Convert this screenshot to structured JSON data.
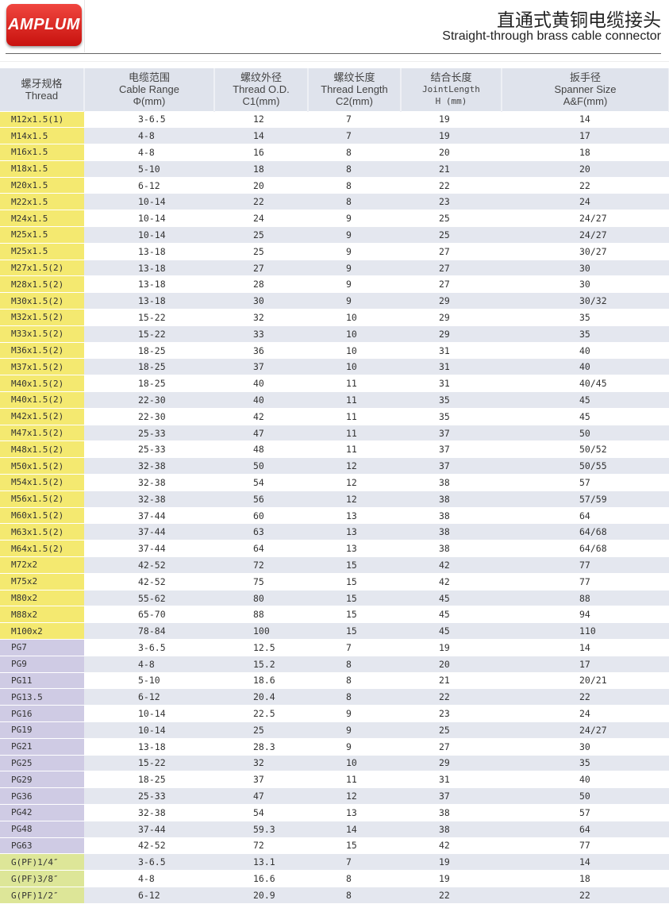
{
  "brand": {
    "logo_text": "AMPLUM"
  },
  "header": {
    "title_cn": "直通式黄铜电缆接头",
    "title_en": "Straight-through brass cable connector"
  },
  "colors": {
    "M": "#f4e970",
    "PG": "#cfcbe4",
    "G": "#dde698",
    "alt_row": "#e4e7ef"
  },
  "table": {
    "columns": [
      {
        "cn": "螺牙规格",
        "en": "Thread",
        "unit": ""
      },
      {
        "cn": "电缆范围",
        "en": "Cable Range",
        "unit": "Φ(mm)"
      },
      {
        "cn": "螺纹外径",
        "en": "Thread O.D.",
        "unit": "C1(mm)"
      },
      {
        "cn": "螺纹长度",
        "en": "Thread Length",
        "unit": "C2(mm)"
      },
      {
        "cn": "结合长度",
        "en": "JointLength",
        "unit": "H (mm)"
      },
      {
        "cn": "扳手径",
        "en": "Spanner Size",
        "unit": "A&F(mm)"
      }
    ],
    "rows": [
      [
        "M12x1.5(1)",
        "3-6.5",
        "12",
        "7",
        "19",
        "14"
      ],
      [
        "M14x1.5",
        "4-8",
        "14",
        "7",
        "19",
        "17"
      ],
      [
        "M16x1.5",
        "4-8",
        "16",
        "8",
        "20",
        "18"
      ],
      [
        "M18x1.5",
        "5-10",
        "18",
        "8",
        "21",
        "20"
      ],
      [
        "M20x1.5",
        "6-12",
        "20",
        "8",
        "22",
        "22"
      ],
      [
        "M22x1.5",
        "10-14",
        "22",
        "8",
        "23",
        "24"
      ],
      [
        "M24x1.5",
        "10-14",
        "24",
        "9",
        "25",
        "24/27"
      ],
      [
        "M25x1.5",
        "10-14",
        "25",
        "9",
        "25",
        "24/27"
      ],
      [
        "M25x1.5",
        "13-18",
        "25",
        "9",
        "27",
        "30/27"
      ],
      [
        "M27x1.5(2)",
        "13-18",
        "27",
        "9",
        "27",
        "30"
      ],
      [
        "M28x1.5(2)",
        "13-18",
        "28",
        "9",
        "27",
        "30"
      ],
      [
        "M30x1.5(2)",
        "13-18",
        "30",
        "9",
        "29",
        "30/32"
      ],
      [
        "M32x1.5(2)",
        "15-22",
        "32",
        "10",
        "29",
        "35"
      ],
      [
        "M33x1.5(2)",
        "15-22",
        "33",
        "10",
        "29",
        "35"
      ],
      [
        "M36x1.5(2)",
        "18-25",
        "36",
        "10",
        "31",
        "40"
      ],
      [
        "M37x1.5(2)",
        "18-25",
        "37",
        "10",
        "31",
        "40"
      ],
      [
        "M40x1.5(2)",
        "18-25",
        "40",
        "11",
        "31",
        "40/45"
      ],
      [
        "M40x1.5(2)",
        "22-30",
        "40",
        "11",
        "35",
        "45"
      ],
      [
        "M42x1.5(2)",
        "22-30",
        "42",
        "11",
        "35",
        "45"
      ],
      [
        "M47x1.5(2)",
        "25-33",
        "47",
        "11",
        "37",
        "50"
      ],
      [
        "M48x1.5(2)",
        "25-33",
        "48",
        "11",
        "37",
        "50/52"
      ],
      [
        "M50x1.5(2)",
        "32-38",
        "50",
        "12",
        "37",
        "50/55"
      ],
      [
        "M54x1.5(2)",
        "32-38",
        "54",
        "12",
        "38",
        "57"
      ],
      [
        "M56x1.5(2)",
        "32-38",
        "56",
        "12",
        "38",
        "57/59"
      ],
      [
        "M60x1.5(2)",
        "37-44",
        "60",
        "13",
        "38",
        "64"
      ],
      [
        "M63x1.5(2)",
        "37-44",
        "63",
        "13",
        "38",
        "64/68"
      ],
      [
        "M64x1.5(2)",
        "37-44",
        "64",
        "13",
        "38",
        "64/68"
      ],
      [
        "M72x2",
        "42-52",
        "72",
        "15",
        "42",
        "77"
      ],
      [
        "M75x2",
        "42-52",
        "75",
        "15",
        "42",
        "77"
      ],
      [
        "M80x2",
        "55-62",
        "80",
        "15",
        "45",
        "88"
      ],
      [
        "M88x2",
        "65-70",
        "88",
        "15",
        "45",
        "94"
      ],
      [
        "M100x2",
        "78-84",
        "100",
        "15",
        "45",
        "110"
      ],
      [
        "PG7",
        "3-6.5",
        "12.5",
        "7",
        "19",
        "14"
      ],
      [
        "PG9",
        "4-8",
        "15.2",
        "8",
        "20",
        "17"
      ],
      [
        "PG11",
        "5-10",
        "18.6",
        "8",
        "21",
        "20/21"
      ],
      [
        "PG13.5",
        "6-12",
        "20.4",
        "8",
        "22",
        "22"
      ],
      [
        "PG16",
        "10-14",
        "22.5",
        "9",
        "23",
        "24"
      ],
      [
        "PG19",
        "10-14",
        "25",
        "9",
        "25",
        "24/27"
      ],
      [
        "PG21",
        "13-18",
        "28.3",
        "9",
        "27",
        "30"
      ],
      [
        "PG25",
        "15-22",
        "32",
        "10",
        "29",
        "35"
      ],
      [
        "PG29",
        "18-25",
        "37",
        "11",
        "31",
        "40"
      ],
      [
        "PG36",
        "25-33",
        "47",
        "12",
        "37",
        "50"
      ],
      [
        "PG42",
        "32-38",
        "54",
        "13",
        "38",
        "57"
      ],
      [
        "PG48",
        "37-44",
        "59.3",
        "14",
        "38",
        "64"
      ],
      [
        "PG63",
        "42-52",
        "72",
        "15",
        "42",
        "77"
      ],
      [
        "G(PF)1/4″",
        "3-6.5",
        "13.1",
        "7",
        "19",
        "14"
      ],
      [
        "G(PF)3/8″",
        "4-8",
        "16.6",
        "8",
        "19",
        "18"
      ],
      [
        "G(PF)1/2″",
        "6-12",
        "20.9",
        "8",
        "22",
        "22"
      ]
    ]
  }
}
